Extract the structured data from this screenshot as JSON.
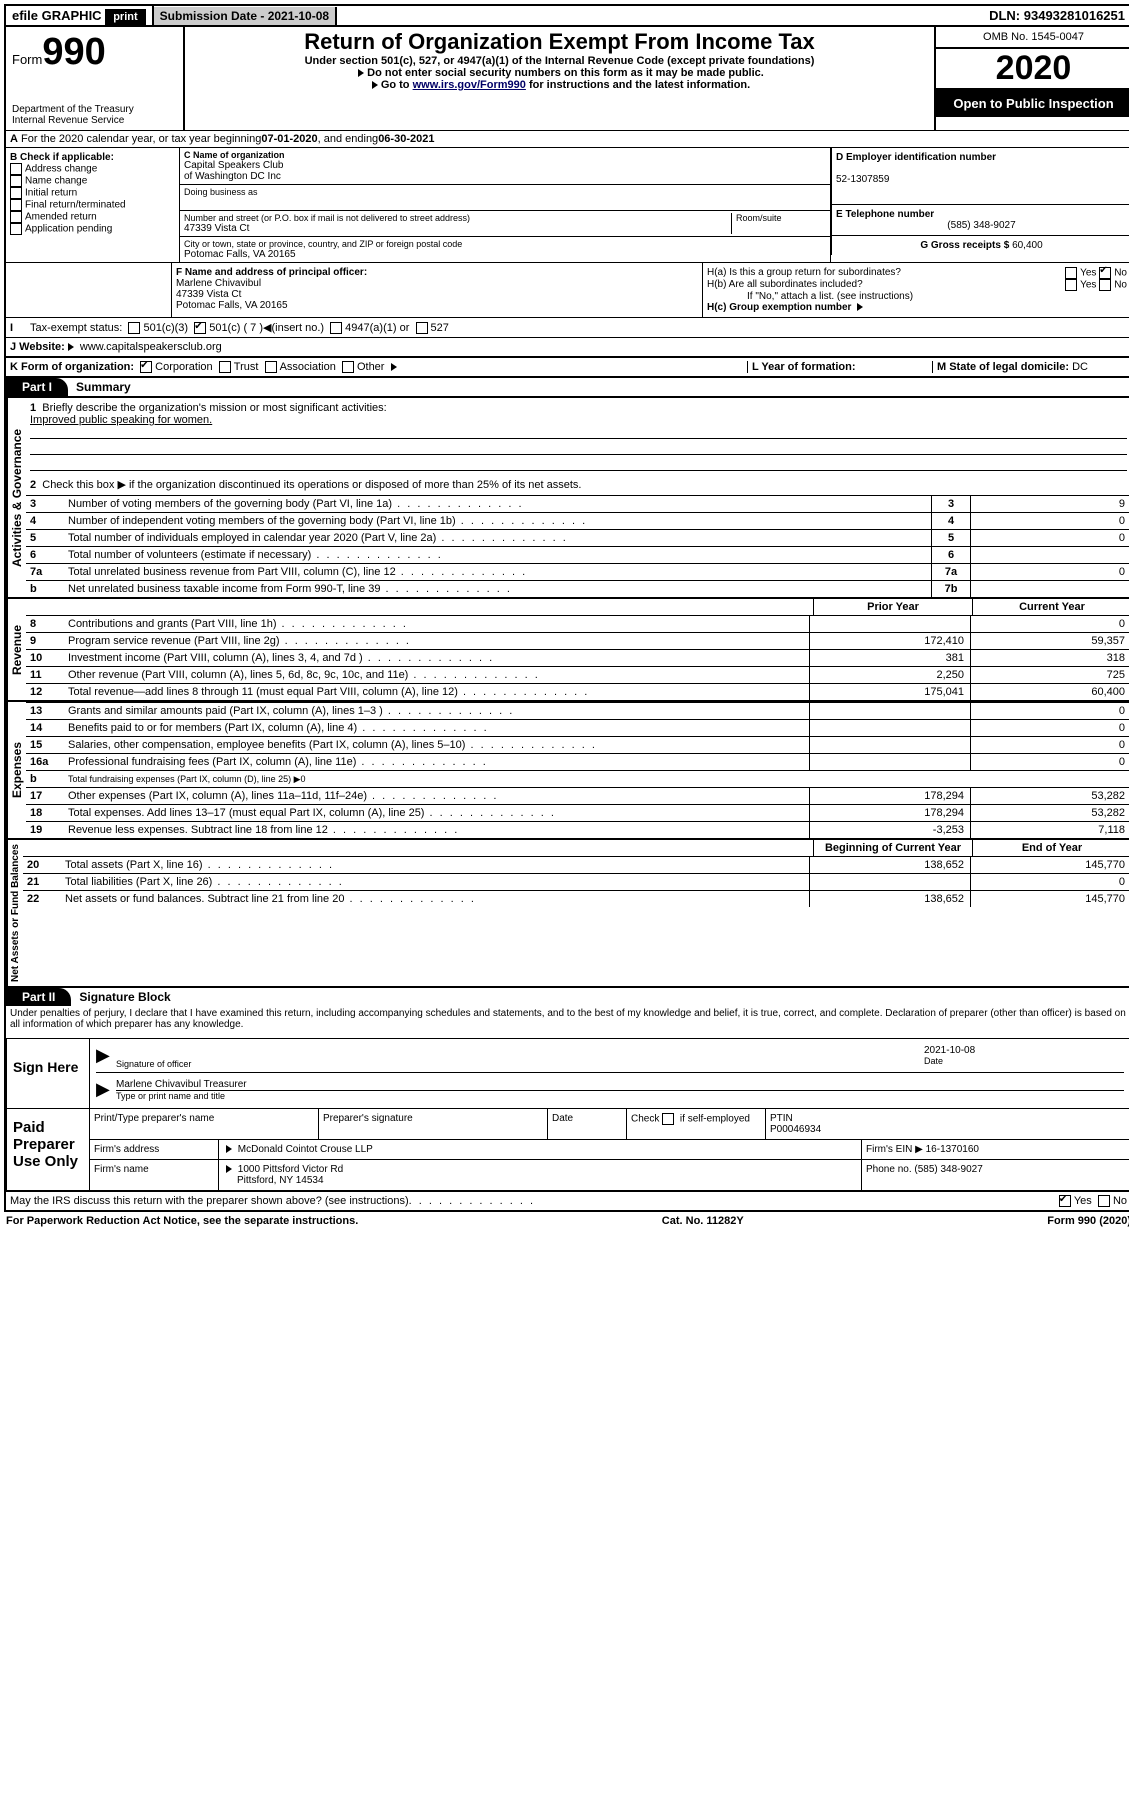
{
  "topbar": {
    "efile": "efile GRAPHIC",
    "print": "print",
    "submission_label": "Submission Date - ",
    "submission_date": "2021-10-08",
    "dln_label": "DLN: ",
    "dln": "93493281016251"
  },
  "header": {
    "form_word": "Form",
    "form_num": "990",
    "dept1": "Department of the Treasury",
    "dept2": "Internal Revenue Service",
    "title": "Return of Organization Exempt From Income Tax",
    "subtitle": "Under section 501(c), 527, or 4947(a)(1) of the Internal Revenue Code (except private foundations)",
    "note1": "Do not enter social security numbers on this form as it may be made public.",
    "note2_pre": "Go to ",
    "note2_link": "www.irs.gov/Form990",
    "note2_post": " for instructions and the latest information.",
    "omb": "OMB No. 1545-0047",
    "year": "2020",
    "open": "Open to Public Inspection"
  },
  "lineA": {
    "text_pre": "For the 2020 calendar year, or tax year beginning ",
    "begin": "07-01-2020",
    "mid": " , and ending ",
    "end": "06-30-2021"
  },
  "boxB": {
    "title": "B Check if applicable:",
    "items": [
      "Address change",
      "Name change",
      "Initial return",
      "Final return/terminated",
      "Amended return",
      "Application pending"
    ]
  },
  "boxC": {
    "label_name": "C Name of organization",
    "name1": "Capital Speakers Club",
    "name2": "of Washington DC Inc",
    "dba_label": "Doing business as",
    "addr_label": "Number and street (or P.O. box if mail is not delivered to street address)",
    "room_label": "Room/suite",
    "addr": "47339 Vista Ct",
    "city_label": "City or town, state or province, country, and ZIP or foreign postal code",
    "city": "Potomac Falls, VA  20165"
  },
  "boxD": {
    "label": "D Employer identification number",
    "val": "52-1307859"
  },
  "boxE": {
    "label": "E Telephone number",
    "val": "(585) 348-9027"
  },
  "boxG": {
    "label": "G Gross receipts $ ",
    "val": "60,400"
  },
  "boxF": {
    "label": "F  Name and address of principal officer:",
    "name": "Marlene Chivavibul",
    "addr1": "47339 Vista Ct",
    "addr2": "Potomac Falls, VA  20165"
  },
  "boxH": {
    "ha": "H(a)  Is this a group return for subordinates?",
    "hb": "H(b)  Are all subordinates included?",
    "hb_note": "If \"No,\" attach a list. (see instructions)",
    "hc": "H(c)  Group exemption number ",
    "yes": "Yes",
    "no": "No"
  },
  "boxI": {
    "label": "Tax-exempt status:",
    "o1": "501(c)(3)",
    "o2": "501(c) ( 7 )",
    "o2_note": "(insert no.)",
    "o3": "4947(a)(1) or",
    "o4": "527"
  },
  "boxJ": {
    "label": "J   Website: ",
    "val": "www.capitalspeakersclub.org"
  },
  "boxK": {
    "label": "K Form of organization:",
    "o1": "Corporation",
    "o2": "Trust",
    "o3": "Association",
    "o4": "Other"
  },
  "boxL": {
    "label": "L Year of formation:",
    "val": ""
  },
  "boxM": {
    "label": "M State of legal domicile: ",
    "val": "DC"
  },
  "part1": {
    "hdr": "Part I",
    "title": "Summary"
  },
  "summary": {
    "q1": "Briefly describe the organization's mission or most significant activities:",
    "a1": "Improved public speaking for women.",
    "q2": "Check this box ▶  if the organization discontinued its operations or disposed of more than 25% of its net assets.",
    "rows_gov": [
      {
        "n": "3",
        "t": "Number of voting members of the governing body (Part VI, line 1a)",
        "c": "3",
        "v": "9"
      },
      {
        "n": "4",
        "t": "Number of independent voting members of the governing body (Part VI, line 1b)",
        "c": "4",
        "v": "0"
      },
      {
        "n": "5",
        "t": "Total number of individuals employed in calendar year 2020 (Part V, line 2a)",
        "c": "5",
        "v": "0"
      },
      {
        "n": "6",
        "t": "Total number of volunteers (estimate if necessary)",
        "c": "6",
        "v": ""
      },
      {
        "n": "7a",
        "t": "Total unrelated business revenue from Part VIII, column (C), line 12",
        "c": "7a",
        "v": "0"
      },
      {
        "n": "b",
        "t": "Net unrelated business taxable income from Form 990-T, line 39",
        "c": "7b",
        "v": ""
      }
    ],
    "col_prior": "Prior Year",
    "col_curr": "Current Year",
    "col_begin": "Beginning of Current Year",
    "col_end": "End of Year",
    "rev": [
      {
        "n": "8",
        "t": "Contributions and grants (Part VIII, line 1h)",
        "p": "",
        "c": "0"
      },
      {
        "n": "9",
        "t": "Program service revenue (Part VIII, line 2g)",
        "p": "172,410",
        "c": "59,357"
      },
      {
        "n": "10",
        "t": "Investment income (Part VIII, column (A), lines 3, 4, and 7d )",
        "p": "381",
        "c": "318"
      },
      {
        "n": "11",
        "t": "Other revenue (Part VIII, column (A), lines 5, 6d, 8c, 9c, 10c, and 11e)",
        "p": "2,250",
        "c": "725"
      },
      {
        "n": "12",
        "t": "Total revenue—add lines 8 through 11 (must equal Part VIII, column (A), line 12)",
        "p": "175,041",
        "c": "60,400"
      }
    ],
    "exp": [
      {
        "n": "13",
        "t": "Grants and similar amounts paid (Part IX, column (A), lines 1–3 )",
        "p": "",
        "c": "0"
      },
      {
        "n": "14",
        "t": "Benefits paid to or for members (Part IX, column (A), line 4)",
        "p": "",
        "c": "0"
      },
      {
        "n": "15",
        "t": "Salaries, other compensation, employee benefits (Part IX, column (A), lines 5–10)",
        "p": "",
        "c": "0"
      },
      {
        "n": "16a",
        "t": "Professional fundraising fees (Part IX, column (A), line 11e)",
        "p": "",
        "c": "0"
      },
      {
        "n": "b",
        "t": "Total fundraising expenses (Part IX, column (D), line 25) ▶0",
        "p": null,
        "c": null
      },
      {
        "n": "17",
        "t": "Other expenses (Part IX, column (A), lines 11a–11d, 11f–24e)",
        "p": "178,294",
        "c": "53,282"
      },
      {
        "n": "18",
        "t": "Total expenses. Add lines 13–17 (must equal Part IX, column (A), line 25)",
        "p": "178,294",
        "c": "53,282"
      },
      {
        "n": "19",
        "t": "Revenue less expenses. Subtract line 18 from line 12",
        "p": "-3,253",
        "c": "7,118"
      }
    ],
    "net": [
      {
        "n": "20",
        "t": "Total assets (Part X, line 16)",
        "p": "138,652",
        "c": "145,770"
      },
      {
        "n": "21",
        "t": "Total liabilities (Part X, line 26)",
        "p": "",
        "c": "0"
      },
      {
        "n": "22",
        "t": "Net assets or fund balances. Subtract line 21 from line 20",
        "p": "138,652",
        "c": "145,770"
      }
    ]
  },
  "side_labels": {
    "gov": "Activities & Governance",
    "rev": "Revenue",
    "exp": "Expenses",
    "net": "Net Assets or Fund Balances"
  },
  "part2": {
    "hdr": "Part II",
    "title": "Signature Block",
    "decl": "Under penalties of perjury, I declare that I have examined this return, including accompanying schedules and statements, and to the best of my knowledge and belief, it is true, correct, and complete. Declaration of preparer (other than officer) is based on all information of which preparer has any knowledge."
  },
  "sign": {
    "here": "Sign Here",
    "sig_label": "Signature of officer",
    "date_label": "Date",
    "date": "2021-10-08",
    "name": "Marlene Chivavibul Treasurer",
    "name_label": "Type or print name and title"
  },
  "paid": {
    "title": "Paid Preparer Use Only",
    "h1": "Print/Type preparer's name",
    "h2": "Preparer's signature",
    "h3": "Date",
    "h4_pre": "Check",
    "h4_post": "if self-employed",
    "h5": "PTIN",
    "ptin": "P00046934",
    "firm_label": "Firm's name",
    "firm": "McDonald Cointot Crouse LLP",
    "ein_label": "Firm's EIN ▶ ",
    "ein": "16-1370160",
    "addr_label": "Firm's address",
    "addr1": "1000 Pittsford Victor Rd",
    "addr2": "Pittsford, NY  14534",
    "phone_label": "Phone no. ",
    "phone": "(585) 348-9027"
  },
  "irs_discuss": "May the IRS discuss this return with the preparer shown above? (see instructions)",
  "footer": {
    "l": "For Paperwork Reduction Act Notice, see the separate instructions.",
    "m": "Cat. No. 11282Y",
    "r": "Form 990 (2020)"
  }
}
